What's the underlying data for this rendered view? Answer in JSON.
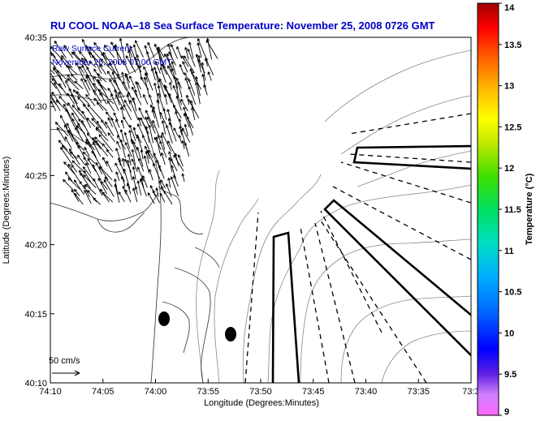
{
  "chart_data": {
    "type": "vector-field-map",
    "title": "RU COOL  NOAA–18  Sea Surface Temperature:  November 25, 2008 0726 GMT",
    "inset_label": "Raw Surface Current",
    "inset_date": "November 25, 2008 07:00 GMT",
    "scale_label": "50 cm/s",
    "xlabel": "Longitude (Degrees:Minutes)",
    "ylabel": "Latitude (Degrees:Minutes)",
    "x_ticks": [
      "74:10",
      "74:05",
      "74:00",
      "73:55",
      "73:50",
      "73:45",
      "73:40",
      "73:35",
      "73:3"
    ],
    "y_ticks": [
      "40:35",
      "40:30",
      "40:25",
      "40:20",
      "40:15",
      "40:10"
    ],
    "xlim_minutes_west": [
      70,
      30
    ],
    "ylim_minutes_north": [
      10,
      35
    ],
    "colorbar": {
      "label": "Temperature (°C)",
      "range": [
        9,
        14
      ],
      "ticks": [
        "14",
        "13.5",
        "13",
        "12.5",
        "12",
        "11.5",
        "11",
        "10.5",
        "10",
        "9.5",
        "9"
      ]
    },
    "current_field_extent": {
      "lon_min_w": [
        69.5,
        54.0
      ],
      "lat_n": [
        23.0,
        33.5
      ],
      "dominant_direction": "north-northwest",
      "typical_speed_cm_s": [
        15,
        40
      ]
    }
  }
}
